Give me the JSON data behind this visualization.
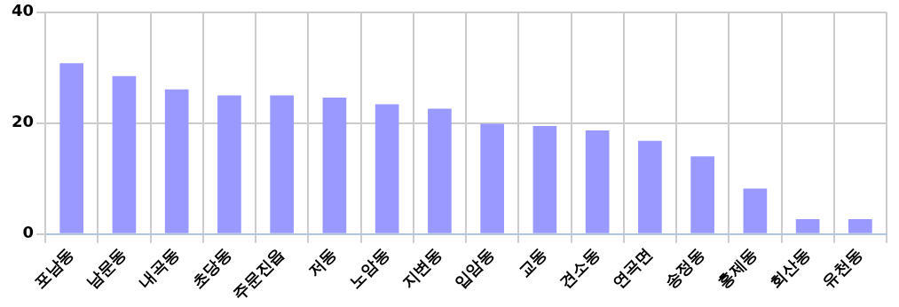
{
  "chart_data": {
    "type": "bar",
    "categories": [
      "포남동",
      "남문동",
      "내곡동",
      "초당동",
      "주문진읍",
      "저동",
      "노암동",
      "지변동",
      "입암동",
      "교동",
      "견소동",
      "연곡면",
      "송정동",
      "홍제동",
      "회산동",
      "유천동"
    ],
    "values": [
      30.8,
      28.5,
      26.1,
      25.0,
      25.0,
      24.6,
      23.4,
      22.6,
      19.9,
      19.5,
      18.7,
      16.8,
      14.0,
      8.2,
      2.7,
      2.7
    ],
    "color": "#9999ff",
    "ylim": [
      0,
      40
    ],
    "yticks": [
      0,
      20,
      40
    ],
    "grid": true,
    "legend": false
  }
}
